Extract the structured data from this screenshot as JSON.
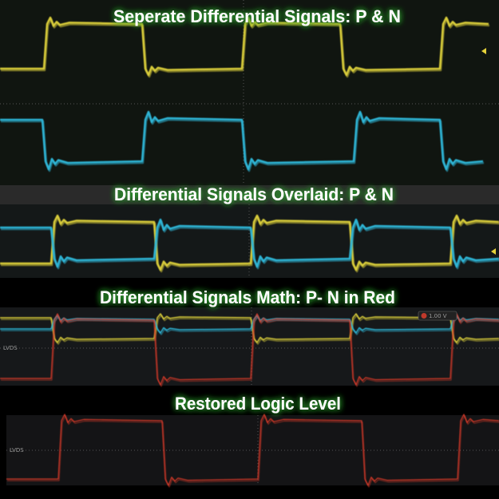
{
  "panels": [
    {
      "title": "Seperate Differential Signals: P & N"
    },
    {
      "title": "Differential Signals Overlaid: P & N"
    },
    {
      "title": "Differential Signals Math: P- N in Red",
      "ref_label": "LVDS",
      "scale_label": "1.00 V"
    },
    {
      "title": "Restored Logic Level",
      "ref_label": "LVDS"
    }
  ]
}
